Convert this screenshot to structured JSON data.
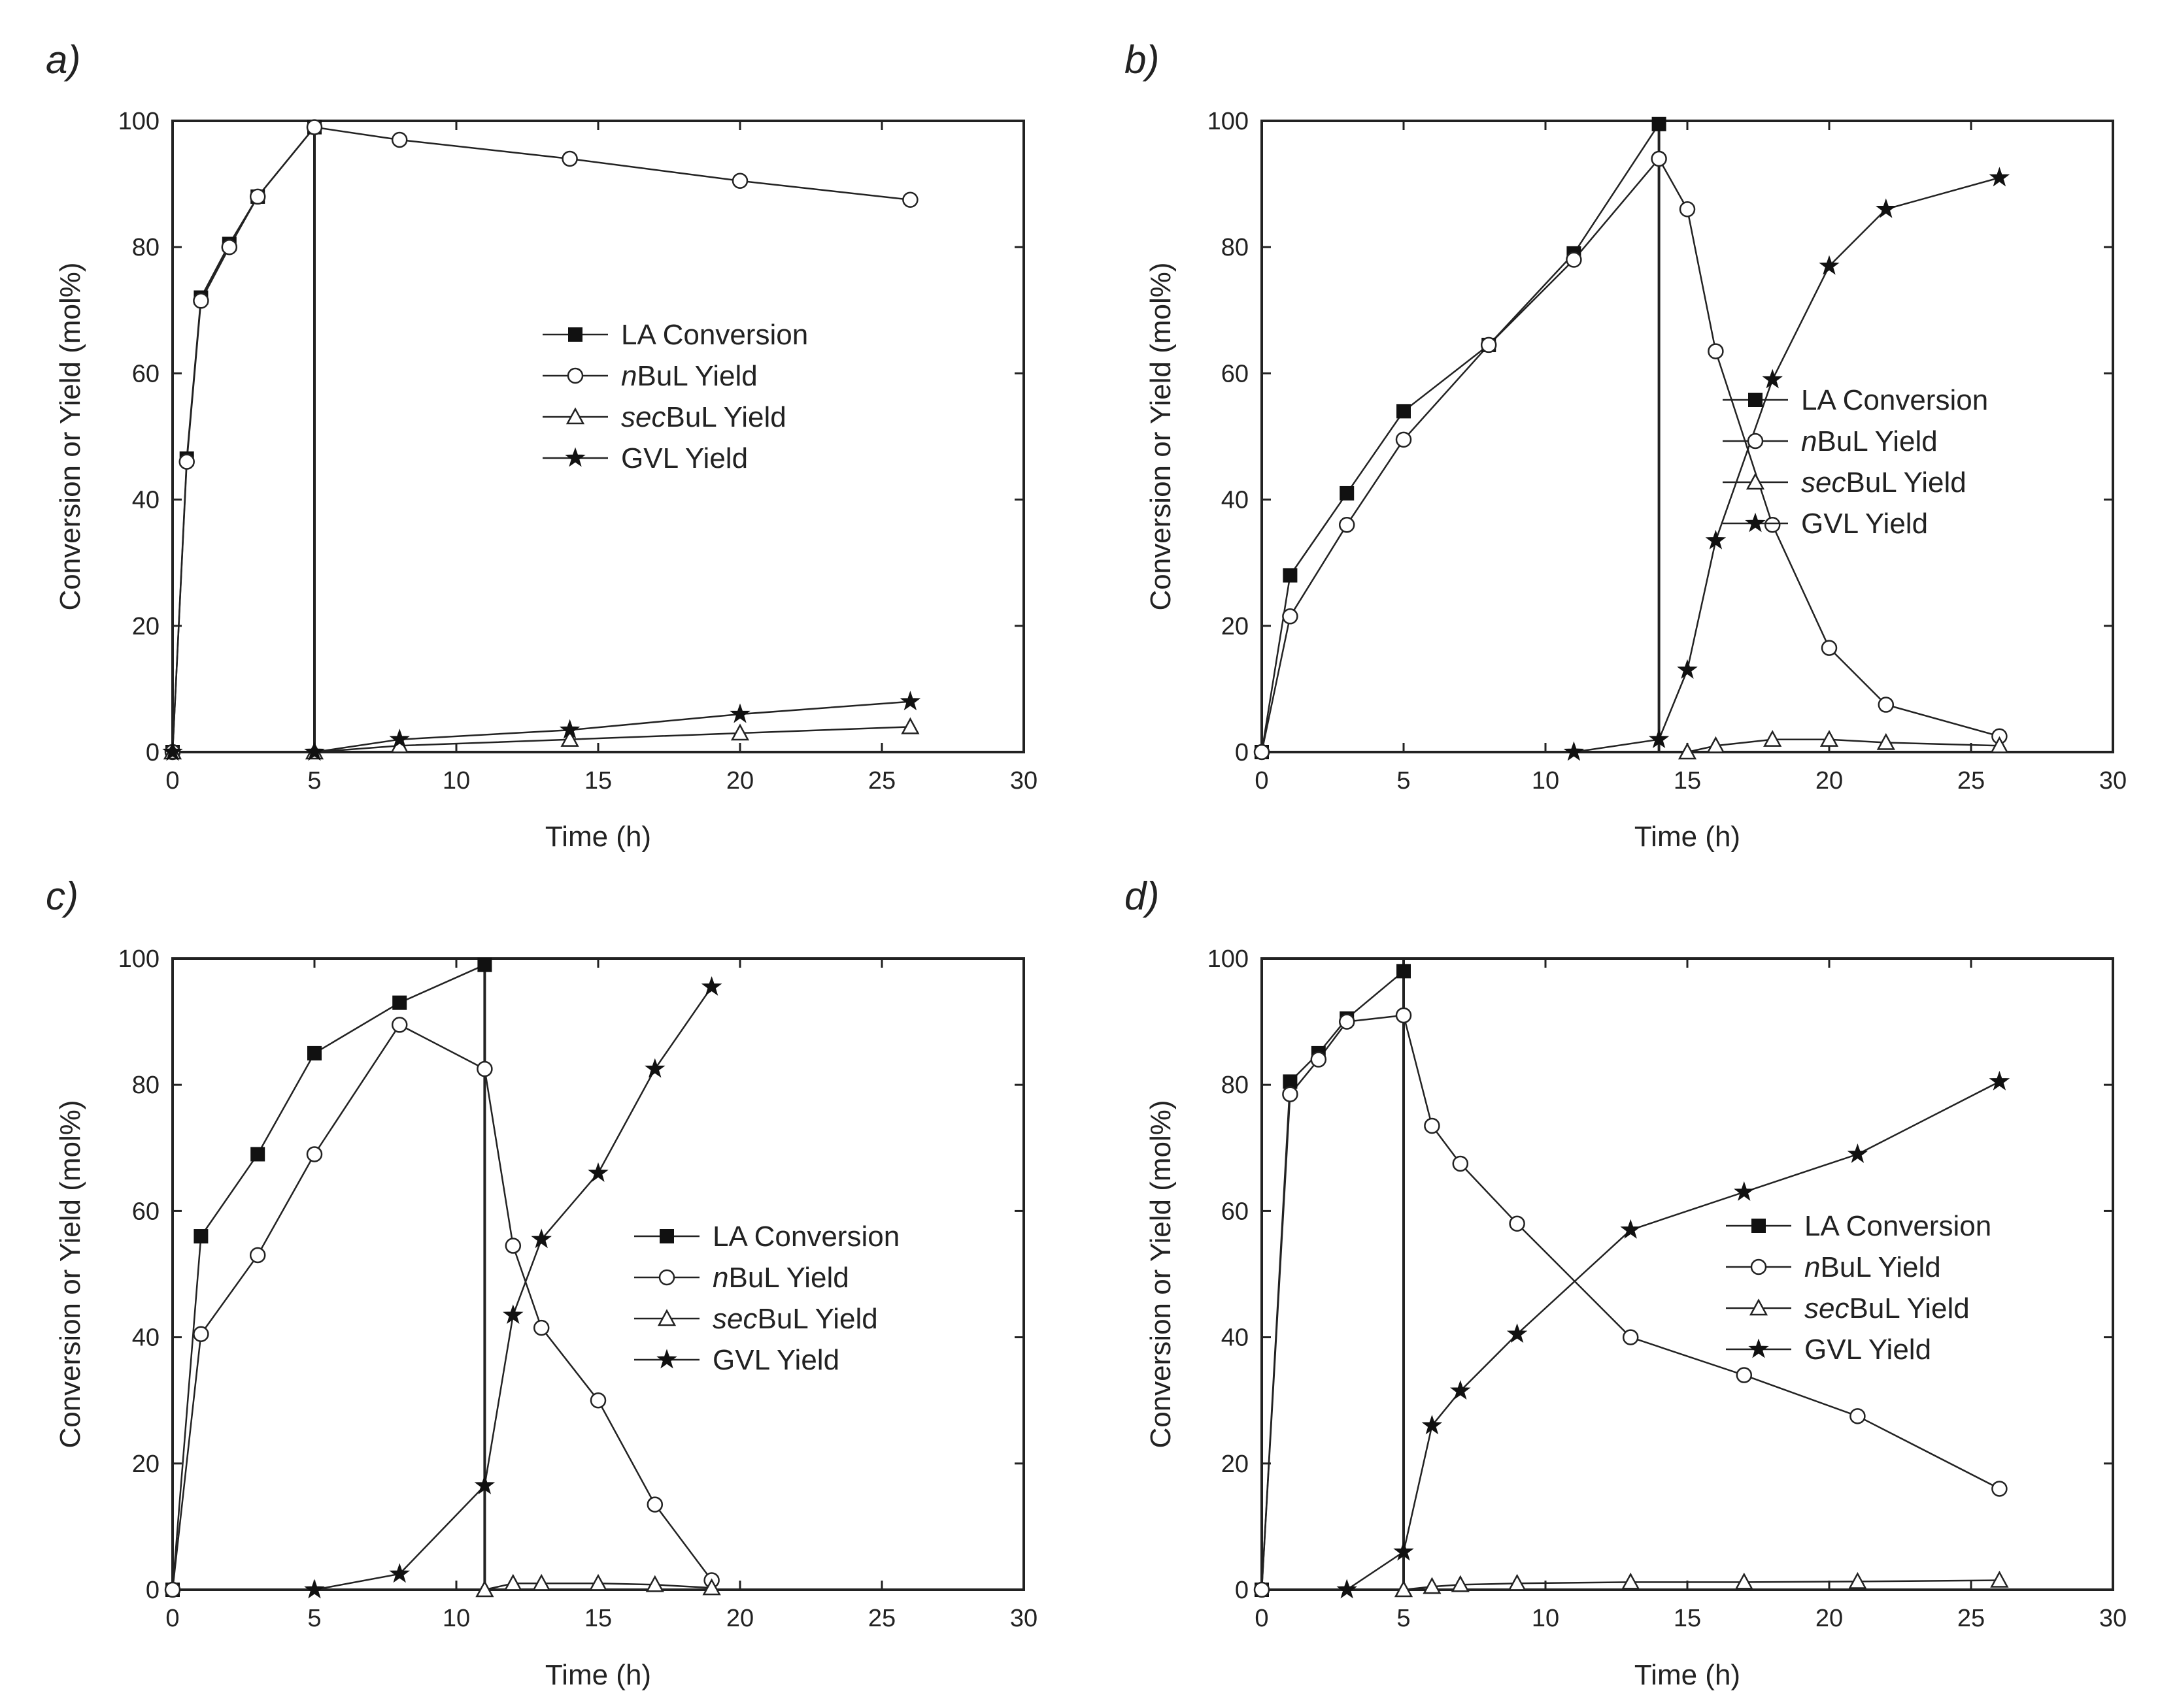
{
  "figure": {
    "colors": {
      "line": "#222222",
      "filled": "#111111",
      "hollow": "#ffffff",
      "background": "#ffffff"
    }
  },
  "chart_data": [
    {
      "type": "line",
      "panel": "a",
      "panel_label": "a)",
      "xlabel": "Time (h)",
      "ylabel": "Conversion or Yield (mol%)",
      "xlim": [
        0,
        30
      ],
      "ylim": [
        0,
        100
      ],
      "xticks": [
        0,
        5,
        10,
        15,
        20,
        25,
        30
      ],
      "yticks": [
        0,
        20,
        40,
        60,
        80,
        100
      ],
      "legend_position": "center-right",
      "vline_x": 5,
      "series": [
        {
          "name": "LA Conversion",
          "legend": [
            "",
            "LA Conversion"
          ],
          "marker": "square",
          "x": [
            0,
            0.5,
            1,
            2,
            3,
            5
          ],
          "y": [
            0,
            46.5,
            72,
            80.5,
            88,
            99
          ]
        },
        {
          "name": "nBuL Yield",
          "legend": [
            "n",
            "BuL Yield"
          ],
          "marker": "circle",
          "x": [
            0,
            0.5,
            1,
            2,
            3,
            5,
            8,
            14,
            20,
            26
          ],
          "y": [
            0,
            46,
            71.5,
            80,
            88,
            99,
            97,
            94,
            90.5,
            87.5
          ]
        },
        {
          "name": "secBuL Yield",
          "legend": [
            "sec",
            "BuL Yield"
          ],
          "marker": "triangle",
          "x": [
            0,
            5,
            8,
            14,
            20,
            26
          ],
          "y": [
            0,
            0,
            1,
            2,
            3,
            4
          ]
        },
        {
          "name": "GVL Yield",
          "legend": [
            "",
            "GVL Yield"
          ],
          "marker": "star",
          "x": [
            0,
            5,
            8,
            14,
            20,
            26
          ],
          "y": [
            0,
            0,
            2,
            3.5,
            6,
            8
          ]
        }
      ]
    },
    {
      "type": "line",
      "panel": "b",
      "panel_label": "b)",
      "xlabel": "Time (h)",
      "ylabel": "Conversion or Yield (mol%)",
      "xlim": [
        0,
        30
      ],
      "ylim": [
        0,
        100
      ],
      "xticks": [
        0,
        5,
        10,
        15,
        20,
        25,
        30
      ],
      "yticks": [
        0,
        20,
        40,
        60,
        80,
        100
      ],
      "legend_position": "center-right",
      "vline_x": 14,
      "series": [
        {
          "name": "LA Conversion",
          "legend": [
            "",
            "LA Conversion"
          ],
          "marker": "square",
          "x": [
            0,
            1,
            3,
            5,
            8,
            11,
            14
          ],
          "y": [
            0,
            28,
            41,
            54,
            64.5,
            79,
            99.5
          ]
        },
        {
          "name": "nBuL Yield",
          "legend": [
            "n",
            "BuL Yield"
          ],
          "marker": "circle",
          "x": [
            0,
            1,
            3,
            5,
            8,
            11,
            14,
            15,
            16,
            18,
            20,
            22,
            26
          ],
          "y": [
            0,
            21.5,
            36,
            49.5,
            64.5,
            78,
            94,
            86,
            63.5,
            36,
            16.5,
            7.5,
            2.5
          ]
        },
        {
          "name": "secBuL Yield",
          "legend": [
            "sec",
            "BuL Yield"
          ],
          "marker": "triangle",
          "x": [
            15,
            16,
            18,
            20,
            22,
            26
          ],
          "y": [
            0,
            1,
            2,
            2,
            1.5,
            1
          ]
        },
        {
          "name": "GVL Yield",
          "legend": [
            "",
            "GVL Yield"
          ],
          "marker": "star",
          "x": [
            11,
            14,
            15,
            16,
            18,
            20,
            22,
            26
          ],
          "y": [
            0,
            2,
            13,
            33.5,
            59,
            77,
            86,
            91
          ]
        }
      ]
    },
    {
      "type": "line",
      "panel": "c",
      "panel_label": "c)",
      "xlabel": "Time (h)",
      "ylabel": "Conversion or Yield (mol%)",
      "xlim": [
        0,
        30
      ],
      "ylim": [
        0,
        100
      ],
      "xticks": [
        0,
        5,
        10,
        15,
        20,
        25,
        30
      ],
      "yticks": [
        0,
        20,
        40,
        60,
        80,
        100
      ],
      "legend_position": "center-right",
      "vline_x": 11,
      "series": [
        {
          "name": "LA Conversion",
          "legend": [
            "",
            "LA Conversion"
          ],
          "marker": "square",
          "x": [
            0,
            1,
            3,
            5,
            8,
            11
          ],
          "y": [
            0,
            56,
            69,
            85,
            93,
            99
          ]
        },
        {
          "name": "nBuL Yield",
          "legend": [
            "n",
            "BuL Yield"
          ],
          "marker": "circle",
          "x": [
            0,
            1,
            3,
            5,
            8,
            11,
            12,
            13,
            15,
            17,
            19
          ],
          "y": [
            0,
            40.5,
            53,
            69,
            89.5,
            82.5,
            54.5,
            41.5,
            30,
            13.5,
            1.5
          ]
        },
        {
          "name": "secBuL Yield",
          "legend": [
            "sec",
            "BuL Yield"
          ],
          "marker": "triangle",
          "x": [
            11,
            12,
            13,
            15,
            17,
            19
          ],
          "y": [
            0,
            1,
            1,
            1,
            0.8,
            0.3
          ]
        },
        {
          "name": "GVL Yield",
          "legend": [
            "",
            "GVL Yield"
          ],
          "marker": "star",
          "x": [
            5,
            8,
            11,
            12,
            13,
            15,
            17,
            19
          ],
          "y": [
            0,
            2.5,
            16.5,
            43.5,
            55.5,
            66,
            82.5,
            95.5
          ]
        }
      ]
    },
    {
      "type": "line",
      "panel": "d",
      "panel_label": "d)",
      "xlabel": "Time (h)",
      "ylabel": "Conversion or Yield (mol%)",
      "xlim": [
        0,
        30
      ],
      "ylim": [
        0,
        100
      ],
      "xticks": [
        0,
        5,
        10,
        15,
        20,
        25,
        30
      ],
      "yticks": [
        0,
        20,
        40,
        60,
        80,
        100
      ],
      "legend_position": "center-right",
      "vline_x": 5,
      "series": [
        {
          "name": "LA Conversion",
          "legend": [
            "",
            "LA Conversion"
          ],
          "marker": "square",
          "x": [
            0,
            1,
            2,
            3,
            5
          ],
          "y": [
            0,
            80.5,
            85,
            90.5,
            98
          ]
        },
        {
          "name": "nBuL Yield",
          "legend": [
            "n",
            "BuL Yield"
          ],
          "marker": "circle",
          "x": [
            0,
            1,
            2,
            3,
            5,
            6,
            7,
            9,
            13,
            17,
            21,
            26
          ],
          "y": [
            0,
            78.5,
            84,
            90,
            91,
            73.5,
            67.5,
            58,
            40,
            34,
            27.5,
            16
          ]
        },
        {
          "name": "secBuL Yield",
          "legend": [
            "sec",
            "BuL Yield"
          ],
          "marker": "triangle",
          "x": [
            5,
            6,
            7,
            9,
            13,
            17,
            21,
            26
          ],
          "y": [
            0,
            0.5,
            0.8,
            1,
            1.2,
            1.2,
            1.3,
            1.5
          ]
        },
        {
          "name": "GVL Yield",
          "legend": [
            "",
            "GVL Yield"
          ],
          "marker": "star",
          "x": [
            3,
            5,
            6,
            7,
            9,
            13,
            17,
            21,
            26
          ],
          "y": [
            0,
            6,
            26,
            31.5,
            40.5,
            57,
            63,
            69,
            80.5
          ]
        }
      ]
    }
  ]
}
